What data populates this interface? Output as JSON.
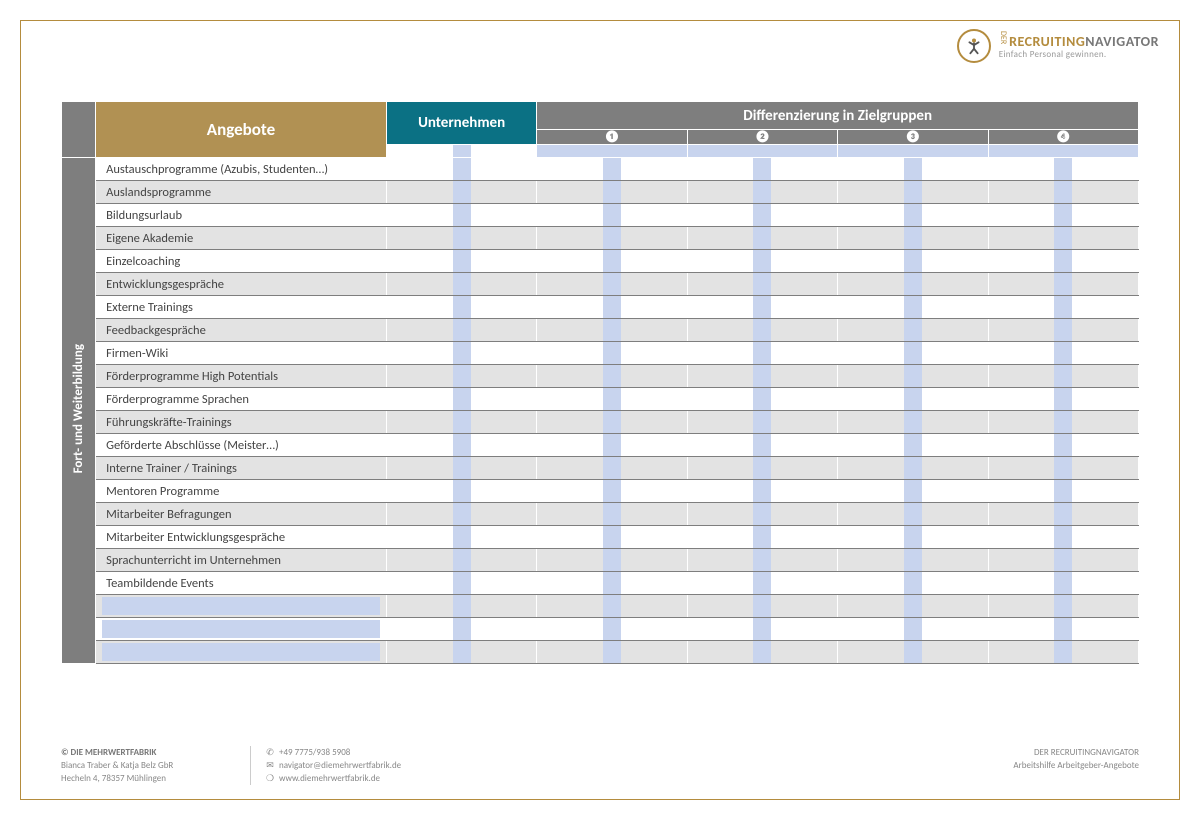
{
  "logo": {
    "prefix": "DER",
    "word1": "RECRUITING",
    "word2": "NAVIGATOR",
    "subline": "Einfach Personal gewinnen."
  },
  "headers": {
    "angebote": "Angebote",
    "unternehmen": "Unternehmen",
    "diff_title": "Differenzierung in Zielgruppen",
    "groups": [
      "❶",
      "❷",
      "❸",
      "❹"
    ]
  },
  "category_label": "Fort- und Weiterbildung",
  "rows": [
    "Austauschprogramme (Azubis, Studenten…)",
    "Auslandsprogramme",
    "Bildungsurlaub",
    "Eigene Akademie",
    "Einzelcoaching",
    "Entwicklungsgespräche",
    "Externe Trainings",
    "Feedbackgespräche",
    "Firmen-Wiki",
    "Förderprogramme High Potentials",
    "Förderprogramme Sprachen",
    "Führungskräfte-Trainings",
    "Geförderte Abschlüsse (Meister…)",
    "Interne Trainer / Trainings",
    "Mentoren Programme",
    "Mitarbeiter Befragungen",
    "Mitarbeiter Entwicklungsgespräche",
    "Sprachunterricht im Unternehmen",
    "Teambildende Events"
  ],
  "extra_blank_rows": 3,
  "columns_count": 5,
  "colors": {
    "frame_border": "#b48c3e",
    "header_gold": "#b19153",
    "header_teal": "#0b7184",
    "header_grey": "#7e7e7e",
    "row_even": "#e3e3e3",
    "row_odd": "#ffffff",
    "fill_blue": "#c8d4ee",
    "text": "#444444",
    "footer_text": "#888888"
  },
  "typography": {
    "base_font": "Calibri",
    "header_fontsize_pt": 13,
    "row_fontsize_pt": 9.5,
    "footer_fontsize_pt": 7
  },
  "footer": {
    "left": {
      "line1": "© DIE MEHRWERTFABRIK",
      "line2": "Bianca Traber & Katja Belz GbR",
      "line3": "Hecheln 4, 78357 Mühlingen"
    },
    "mid": {
      "phone": "+49 7775/938 5908",
      "email": "navigator@diemehrwertfabrik.de",
      "web": "www.diemehrwertfabrik.de"
    },
    "right": {
      "line1": "DER RECRUITINGNAVIGATOR",
      "line2": "Arbeitshilfe Arbeitgeber-Angebote"
    }
  }
}
